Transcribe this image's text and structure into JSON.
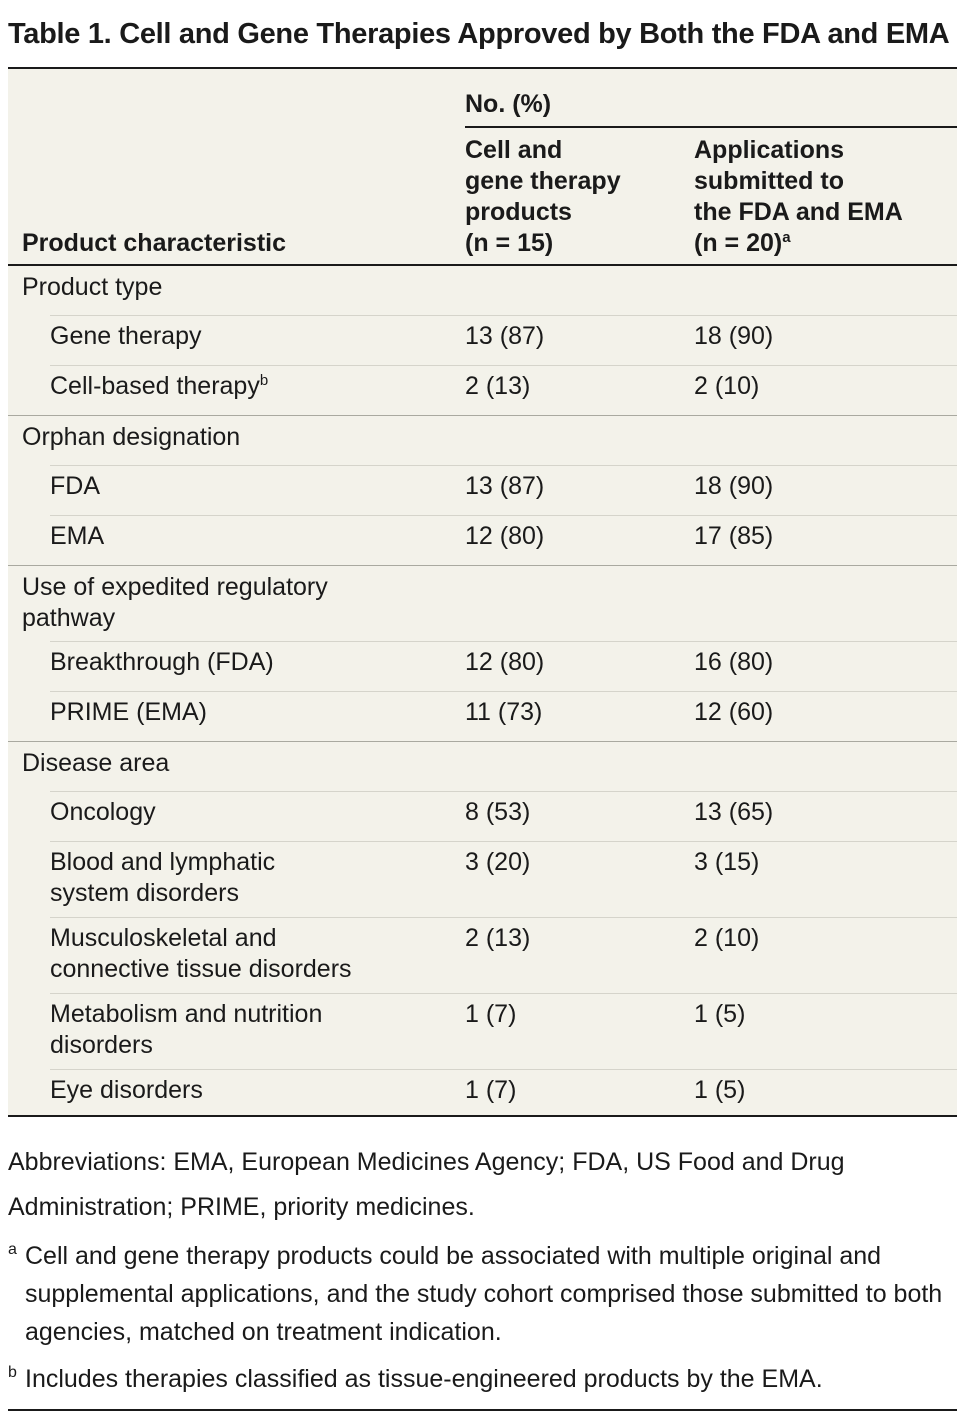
{
  "title": "Table 1. Cell and Gene Therapies Approved by Both the FDA and EMA",
  "header": {
    "group_label": "No. (%)",
    "col0": "Product characteristic",
    "col1_lines": [
      "Cell and",
      "gene therapy",
      "products",
      "(n = 15)"
    ],
    "col2_lines": [
      "Applications",
      "submitted to",
      "the FDA and EMA",
      "(n = 20)"
    ],
    "col2_footnote_mark": "a"
  },
  "rows": [
    {
      "label": "Product type",
      "c1": "",
      "c2": ""
    },
    {
      "label": "Gene therapy",
      "c1": "13 (87)",
      "c2": "18 (90)"
    },
    {
      "label": "Cell-based therapy",
      "mark": "b",
      "c1": "2 (13)",
      "c2": "2 (10)"
    },
    {
      "label": "Orphan designation",
      "c1": "",
      "c2": ""
    },
    {
      "label": "FDA",
      "c1": "13 (87)",
      "c2": "18 (90)"
    },
    {
      "label": "EMA",
      "c1": "12 (80)",
      "c2": "17 (85)"
    },
    {
      "label": "Use of expedited regulatory pathway",
      "c1": "",
      "c2": ""
    },
    {
      "label": "Breakthrough (FDA)",
      "c1": "12 (80)",
      "c2": "16 (80)"
    },
    {
      "label": "PRIME (EMA)",
      "c1": "11 (73)",
      "c2": "12 (60)"
    },
    {
      "label": "Disease area",
      "c1": "",
      "c2": ""
    },
    {
      "label": "Oncology",
      "c1": "8 (53)",
      "c2": "13 (65)"
    },
    {
      "label": "Blood and lymphatic system disorders",
      "c1": "3 (20)",
      "c2": "3 (15)"
    },
    {
      "label": "Musculoskeletal and connective tissue disorders",
      "c1": "2 (13)",
      "c2": "2 (10)"
    },
    {
      "label": "Metabolism and nutrition disorders",
      "c1": "1 (7)",
      "c2": "1 (5)"
    },
    {
      "label": "Eye disorders",
      "c1": "1 (7)",
      "c2": "1 (5)"
    }
  ],
  "abbreviations": "Abbreviations: EMA, European Medicines Agency; FDA, US Food and Drug Administration; PRIME, priority medicines.",
  "footnotes": [
    {
      "mark": "a",
      "text": "Cell and gene therapy products could be associated with multiple original and supplemental applications, and the study cohort comprised those submitted to both agencies, matched on treatment indication."
    },
    {
      "mark": "b",
      "text": "Includes therapies classified as tissue-engineered products by the EMA."
    }
  ]
}
